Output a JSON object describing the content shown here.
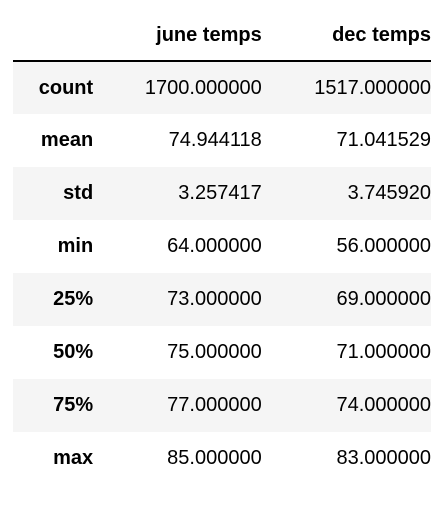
{
  "table": {
    "index_header": "",
    "columns": [
      "june temps",
      "dec temps"
    ],
    "rows": [
      {
        "label": "count",
        "june": "1700.000000",
        "dec": "1517.000000"
      },
      {
        "label": "mean",
        "june": "74.944118",
        "dec": "71.041529"
      },
      {
        "label": "std",
        "june": "3.257417",
        "dec": "3.745920"
      },
      {
        "label": "min",
        "june": "64.000000",
        "dec": "56.000000"
      },
      {
        "label": "25%",
        "june": "73.000000",
        "dec": "69.000000"
      },
      {
        "label": "50%",
        "june": "75.000000",
        "dec": "71.000000"
      },
      {
        "label": "75%",
        "june": "77.000000",
        "dec": "74.000000"
      },
      {
        "label": "max",
        "june": "85.000000",
        "dec": "83.000000"
      }
    ]
  },
  "colors": {
    "stripe": "#f5f5f5",
    "background": "#ffffff",
    "text": "#000000",
    "header_rule": "#000000"
  }
}
